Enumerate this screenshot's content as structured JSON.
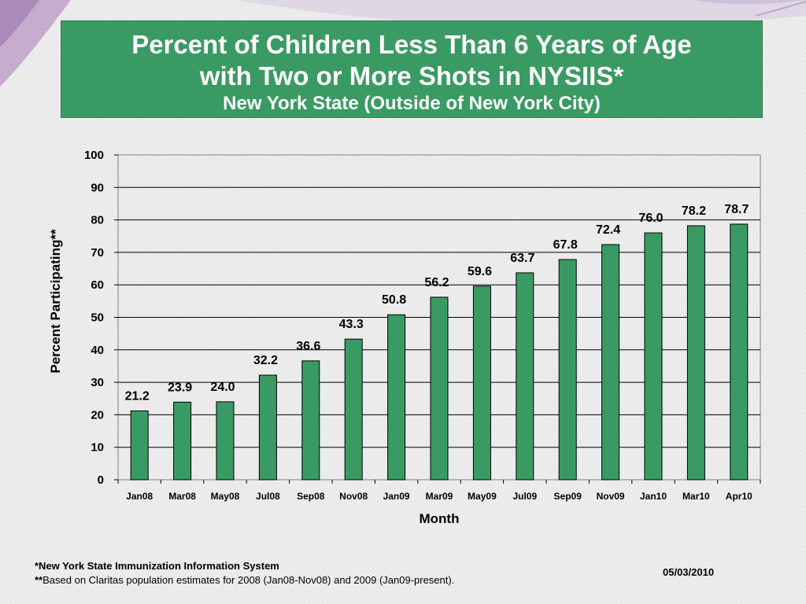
{
  "header": {
    "title_line1": "Percent of Children Less Than 6 Years of Age",
    "title_line2": "with Two or More Shots in NYSIIS*",
    "subtitle": "New York State (Outside of New York City)"
  },
  "chart_data": {
    "type": "bar",
    "categories": [
      "Jan08",
      "Mar08",
      "May08",
      "Jul08",
      "Sep08",
      "Nov08",
      "Jan09",
      "Mar09",
      "May09",
      "Jul09",
      "Sep09",
      "Nov09",
      "Jan10",
      "Mar10",
      "Apr10"
    ],
    "values": [
      21.2,
      23.9,
      24.0,
      32.2,
      36.6,
      43.3,
      50.8,
      56.2,
      59.6,
      63.7,
      67.8,
      72.4,
      76.0,
      78.2,
      78.7
    ],
    "value_labels": [
      "21.2",
      "23.9",
      "24.0",
      "32.2",
      "36.6",
      "43.3",
      "50.8",
      "56.2",
      "59.6",
      "63.7",
      "67.8",
      "72.4",
      "76.0",
      "78.2",
      "78.7"
    ],
    "xlabel": "Month",
    "ylabel": "Percent Participating**",
    "ylim": [
      0,
      100
    ],
    "yticks": [
      0,
      10,
      20,
      30,
      40,
      50,
      60,
      70,
      80,
      90,
      100
    ],
    "grid": true,
    "bar_color": "#3a9a63"
  },
  "footnotes": {
    "line1": "*New York State Immunization Information System",
    "line2_prefix": "**",
    "line2_text": "Based on Claritas population estimates for 2008 (Jan08-Nov08) and 2009 (Jan09-present)."
  },
  "date": "05/03/2010"
}
